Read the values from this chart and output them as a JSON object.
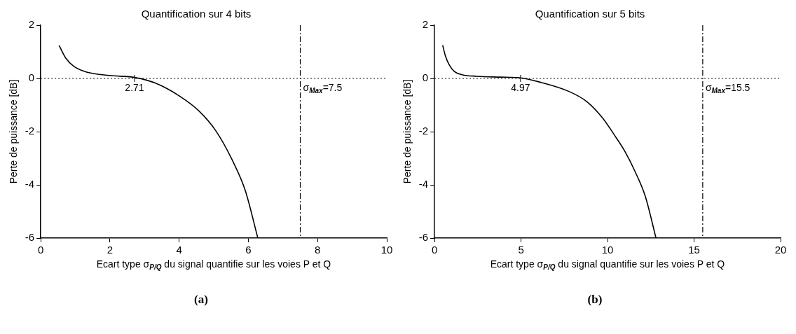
{
  "chart_data": [
    {
      "type": "line",
      "title": "Quantification sur 4 bits",
      "xlabel": "Ecart type σ$_{P/Q}$ du signal quantifie sur les voies P et Q",
      "ylabel": "Perte de puissance [dB]",
      "series": [
        {
          "color": "#000000",
          "x": [
            0.53,
            0.72,
            0.96,
            1.35,
            1.98,
            2.74,
            3.32,
            4.03,
            4.57,
            5.05,
            5.52,
            5.91,
            6.27
          ],
          "values": [
            1.24,
            0.77,
            0.45,
            0.23,
            0.11,
            0.03,
            -0.18,
            -0.68,
            -1.22,
            -1.95,
            -3.03,
            -4.21,
            -5.98
          ]
        }
      ],
      "xlim": [
        0,
        10
      ],
      "xticks": [
        0,
        2,
        4,
        6,
        8,
        10
      ],
      "ylim": [
        -6,
        2
      ],
      "yticks": [
        -6,
        -4,
        -2,
        0,
        2
      ],
      "grid": false,
      "legend": false,
      "marker": "none",
      "line_style": "solid",
      "ref_lines": [
        {
          "axis": "y",
          "value": 0,
          "line_style": "dotted",
          "color": "#000000"
        },
        {
          "axis": "x",
          "value": 7.5,
          "label": "σ$_{Max}$=7.5",
          "line_style": "dashed",
          "color": "#000000"
        }
      ],
      "annotations": [
        {
          "text": "2.71",
          "x": 2.71,
          "y": 0
        },
        "(a)"
      ]
    },
    {
      "type": "line",
      "title": "Quantification sur 5 bits",
      "xlabel": "Ecart type σ$_{P/Q}$ du signal quantifie sur les voies P et Q",
      "ylabel": "Perte de puissance [dB]",
      "series": [
        {
          "color": "#000000",
          "x": [
            0.47,
            0.63,
            0.85,
            1.15,
            1.59,
            2.47,
            3.79,
            4.97,
            6.15,
            7.77,
            8.8,
            9.68,
            10.41,
            11.0,
            11.59,
            12.18,
            12.8
          ],
          "values": [
            1.25,
            0.84,
            0.51,
            0.26,
            0.14,
            0.08,
            0.05,
            0.02,
            -0.15,
            -0.49,
            -0.87,
            -1.46,
            -2.14,
            -2.74,
            -3.5,
            -4.43,
            -6.0
          ]
        }
      ],
      "xlim": [
        0,
        20
      ],
      "xticks": [
        0,
        5,
        10,
        15,
        20
      ],
      "ylim": [
        -6,
        2
      ],
      "yticks": [
        -6,
        -4,
        -2,
        0,
        2
      ],
      "grid": false,
      "legend": false,
      "marker": "none",
      "line_style": "solid",
      "ref_lines": [
        {
          "axis": "y",
          "value": 0,
          "line_style": "dotted",
          "color": "#000000"
        },
        {
          "axis": "x",
          "value": 15.5,
          "label": "σ$_{Max}$=15.5",
          "line_style": "dashed",
          "color": "#000000"
        }
      ],
      "annotations": [
        {
          "text": "4.97",
          "x": 4.97,
          "y": 0
        },
        "(b)"
      ]
    }
  ]
}
